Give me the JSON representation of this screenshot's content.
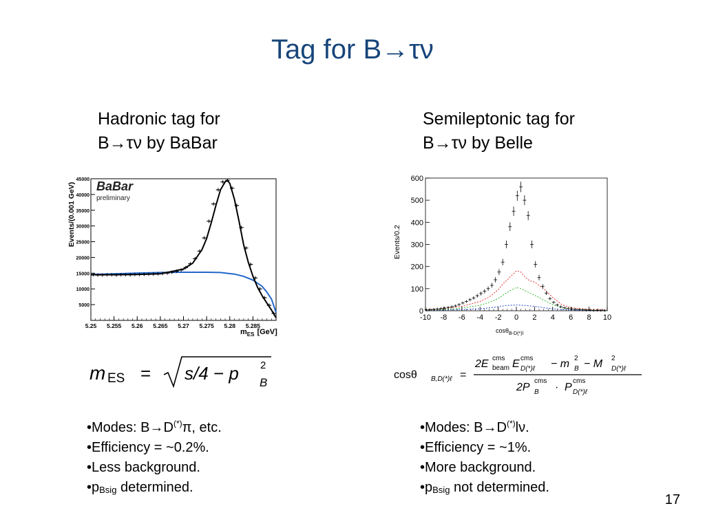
{
  "slide": {
    "title": "Tag for B→τν",
    "page_number": "17"
  },
  "left": {
    "heading_line1": "Hadronic tag for",
    "heading_line2": "B→τν by BaBar",
    "formula": {
      "lhs": "m",
      "lhs_sub": "ES",
      "eq": "=",
      "radicand": "s/4 − p",
      "rad_sup": "2",
      "rad_sub": "B"
    },
    "bullets": {
      "b1_pre": "Modes: B→D",
      "b1_sup": "(*)",
      "b1_post": "π, etc.",
      "b2": "Efficiency = ~0.2%.",
      "b3": "Less background.",
      "b4_pre": "p",
      "b4_sub": "Bsig",
      "b4_post": " determined."
    }
  },
  "right": {
    "heading_line1": "Semileptonic tag for",
    "heading_line2": "B→τν by Belle",
    "formula": {
      "lhs": "cosθ",
      "lhs_sub": "B,D(*)ℓ",
      "eq": "=",
      "num_a": "2E",
      "num_a_sup": "cms",
      "num_a_sub": "beam",
      "num_b": "E",
      "num_b_sup": "cms",
      "num_b_sub": "D(*)ℓ",
      "num_c": "− m",
      "num_c_sup": "2",
      "num_c_sub": "B",
      "num_d": "− M",
      "num_d_sup": "2",
      "num_d_sub": "D(*)ℓ",
      "den_a": "2P",
      "den_a_sup": "cms",
      "den_a_sub": "B",
      "den_dot": "·",
      "den_b": "P",
      "den_b_sup": "cms",
      "den_b_sub": "D(*)ℓ"
    },
    "bullets": {
      "b1_pre": "Modes: B→D",
      "b1_sup": "(*)",
      "b1_post": "lν.",
      "b2": "Efficiency = ~1%.",
      "b3": "More background.",
      "b4_pre": "p",
      "b4_sub": "Bsig",
      "b4_post": " not determined."
    }
  },
  "chart_data": [
    {
      "type": "line",
      "experiment_label": "BaBar",
      "annotation": "preliminary",
      "ylabel": "Events/(0.001 GeV)",
      "xlabel_main": "m",
      "xlabel_sub": "ES",
      "xlabel_unit": "[GeV]",
      "xlim": [
        5.25,
        5.29
      ],
      "ylim": [
        0,
        45000
      ],
      "x_ticks": [
        "5.25",
        "5.255",
        "5.26",
        "5.265",
        "5.27",
        "5.275",
        "5.28",
        "5.285"
      ],
      "x_tick_values": [
        5.25,
        5.255,
        5.26,
        5.265,
        5.27,
        5.275,
        5.28,
        5.285
      ],
      "y_ticks": [
        "5000",
        "10000",
        "15000",
        "20000",
        "25000",
        "30000",
        "35000",
        "40000",
        "45000"
      ],
      "y_tick_values": [
        5000,
        10000,
        15000,
        20000,
        25000,
        30000,
        35000,
        40000,
        45000
      ],
      "series": [
        {
          "kind": "data-points",
          "color": "#000000",
          "x": [
            5.2505,
            5.2515,
            5.2525,
            5.2535,
            5.2545,
            5.2555,
            5.2565,
            5.2575,
            5.2585,
            5.2595,
            5.2605,
            5.2615,
            5.2625,
            5.2635,
            5.2645,
            5.2655,
            5.2665,
            5.2675,
            5.2685,
            5.2695,
            5.2705,
            5.2715,
            5.2725,
            5.2735,
            5.2745,
            5.2755,
            5.2765,
            5.2775,
            5.2785,
            5.2795,
            5.2805,
            5.2815,
            5.2825,
            5.2835,
            5.2845,
            5.2855,
            5.2865,
            5.2875,
            5.2885,
            5.2895
          ],
          "y": [
            14500,
            14400,
            14400,
            14500,
            14500,
            14400,
            14500,
            14500,
            14500,
            14600,
            14600,
            14600,
            14700,
            14700,
            14800,
            14900,
            15000,
            15300,
            15600,
            16000,
            16800,
            18000,
            19600,
            22000,
            26200,
            31500,
            37000,
            41500,
            44000,
            44500,
            42000,
            36500,
            29500,
            23000,
            17800,
            13500,
            10000,
            7200,
            4800,
            2200
          ]
        },
        {
          "kind": "fit",
          "color": "#000000",
          "x": [
            5.25,
            5.255,
            5.26,
            5.265,
            5.27,
            5.272,
            5.274,
            5.275,
            5.276,
            5.277,
            5.278,
            5.279,
            5.2795,
            5.28,
            5.281,
            5.282,
            5.283,
            5.284,
            5.285,
            5.286,
            5.287,
            5.288,
            5.289,
            5.29
          ],
          "y": [
            14500,
            14500,
            14600,
            14800,
            16300,
            18200,
            22500,
            26000,
            31000,
            36500,
            41500,
            44000,
            44500,
            43500,
            38500,
            31500,
            24000,
            18500,
            14000,
            10500,
            7800,
            5500,
            3300,
            800
          ]
        },
        {
          "kind": "background",
          "color": "#2166c9",
          "x": [
            5.25,
            5.255,
            5.26,
            5.265,
            5.27,
            5.275,
            5.278,
            5.281,
            5.283,
            5.285,
            5.287,
            5.288,
            5.289,
            5.29
          ],
          "y": [
            14600,
            14800,
            15000,
            15200,
            15300,
            15300,
            15200,
            14700,
            14000,
            12800,
            10800,
            9000,
            6800,
            2500
          ]
        }
      ]
    },
    {
      "type": "line",
      "ylabel": "Events/0.2",
      "xlabel_main": "cosθ",
      "xlabel_sub": "B-D(*)l",
      "xlim": [
        -10,
        10
      ],
      "ylim": [
        0,
        600
      ],
      "x_ticks": [
        "-10",
        "-8",
        "-6",
        "-4",
        "-2",
        "0",
        "2",
        "4",
        "6",
        "8",
        "10"
      ],
      "x_tick_values": [
        -10,
        -8,
        -6,
        -4,
        -2,
        0,
        2,
        4,
        6,
        8,
        10
      ],
      "y_ticks": [
        "0",
        "100",
        "200",
        "300",
        "400",
        "500",
        "600"
      ],
      "y_tick_values": [
        0,
        100,
        200,
        300,
        400,
        500,
        600
      ],
      "series": [
        {
          "kind": "data-points",
          "color": "#000000",
          "x": [
            -9.9,
            -9.5,
            -9.1,
            -8.7,
            -8.3,
            -7.9,
            -7.5,
            -7.1,
            -6.7,
            -6.3,
            -5.9,
            -5.5,
            -5.1,
            -4.7,
            -4.3,
            -3.9,
            -3.5,
            -3.1,
            -2.7,
            -2.3,
            -1.9,
            -1.5,
            -1.1,
            -0.7,
            -0.3,
            0.1,
            0.5,
            0.9,
            1.3,
            1.7,
            2.1,
            2.5,
            2.9,
            3.3,
            3.7,
            4.1,
            4.5,
            4.9,
            5.3,
            5.7,
            6.1,
            6.5,
            6.9,
            7.3,
            7.7,
            8.1,
            8.5,
            8.9,
            9.3,
            9.7
          ],
          "y": [
            4,
            5,
            6,
            8,
            10,
            12,
            15,
            18,
            22,
            28,
            35,
            42,
            50,
            58,
            68,
            78,
            88,
            100,
            115,
            140,
            175,
            220,
            300,
            380,
            450,
            520,
            560,
            500,
            430,
            300,
            210,
            150,
            110,
            80,
            55,
            38,
            26,
            18,
            13,
            10,
            8,
            6,
            5,
            4,
            3,
            3,
            2,
            2,
            2,
            1
          ]
        },
        {
          "kind": "model",
          "color": "#e03030",
          "x": [
            -10,
            -8,
            -6,
            -4,
            -3,
            -2,
            -1.5,
            -1,
            -0.5,
            0,
            0.5,
            1,
            1.5,
            2,
            2.5,
            3,
            4,
            5,
            6,
            8,
            10
          ],
          "y": [
            5,
            10,
            20,
            42,
            62,
            95,
            120,
            140,
            160,
            180,
            175,
            150,
            135,
            130,
            115,
            100,
            60,
            28,
            14,
            6,
            3
          ]
        },
        {
          "kind": "model",
          "color": "#2eb82e",
          "x": [
            -10,
            -8,
            -6,
            -4,
            -3,
            -2,
            -1.5,
            -1,
            -0.5,
            0,
            0.5,
            1,
            1.5,
            2,
            2.5,
            3,
            4,
            5,
            6,
            8,
            10
          ],
          "y": [
            3,
            6,
            12,
            25,
            38,
            55,
            70,
            82,
            95,
            105,
            100,
            90,
            80,
            70,
            60,
            48,
            28,
            14,
            8,
            3,
            2
          ]
        },
        {
          "kind": "model",
          "color": "#2446d8",
          "x": [
            -10,
            -8,
            -6,
            -4,
            -3,
            -2,
            -1,
            0,
            1,
            2,
            3,
            4,
            5,
            6,
            8,
            10
          ],
          "y": [
            2,
            3,
            5,
            9,
            13,
            18,
            24,
            26,
            24,
            20,
            14,
            9,
            5,
            3,
            2,
            1
          ]
        }
      ]
    }
  ]
}
